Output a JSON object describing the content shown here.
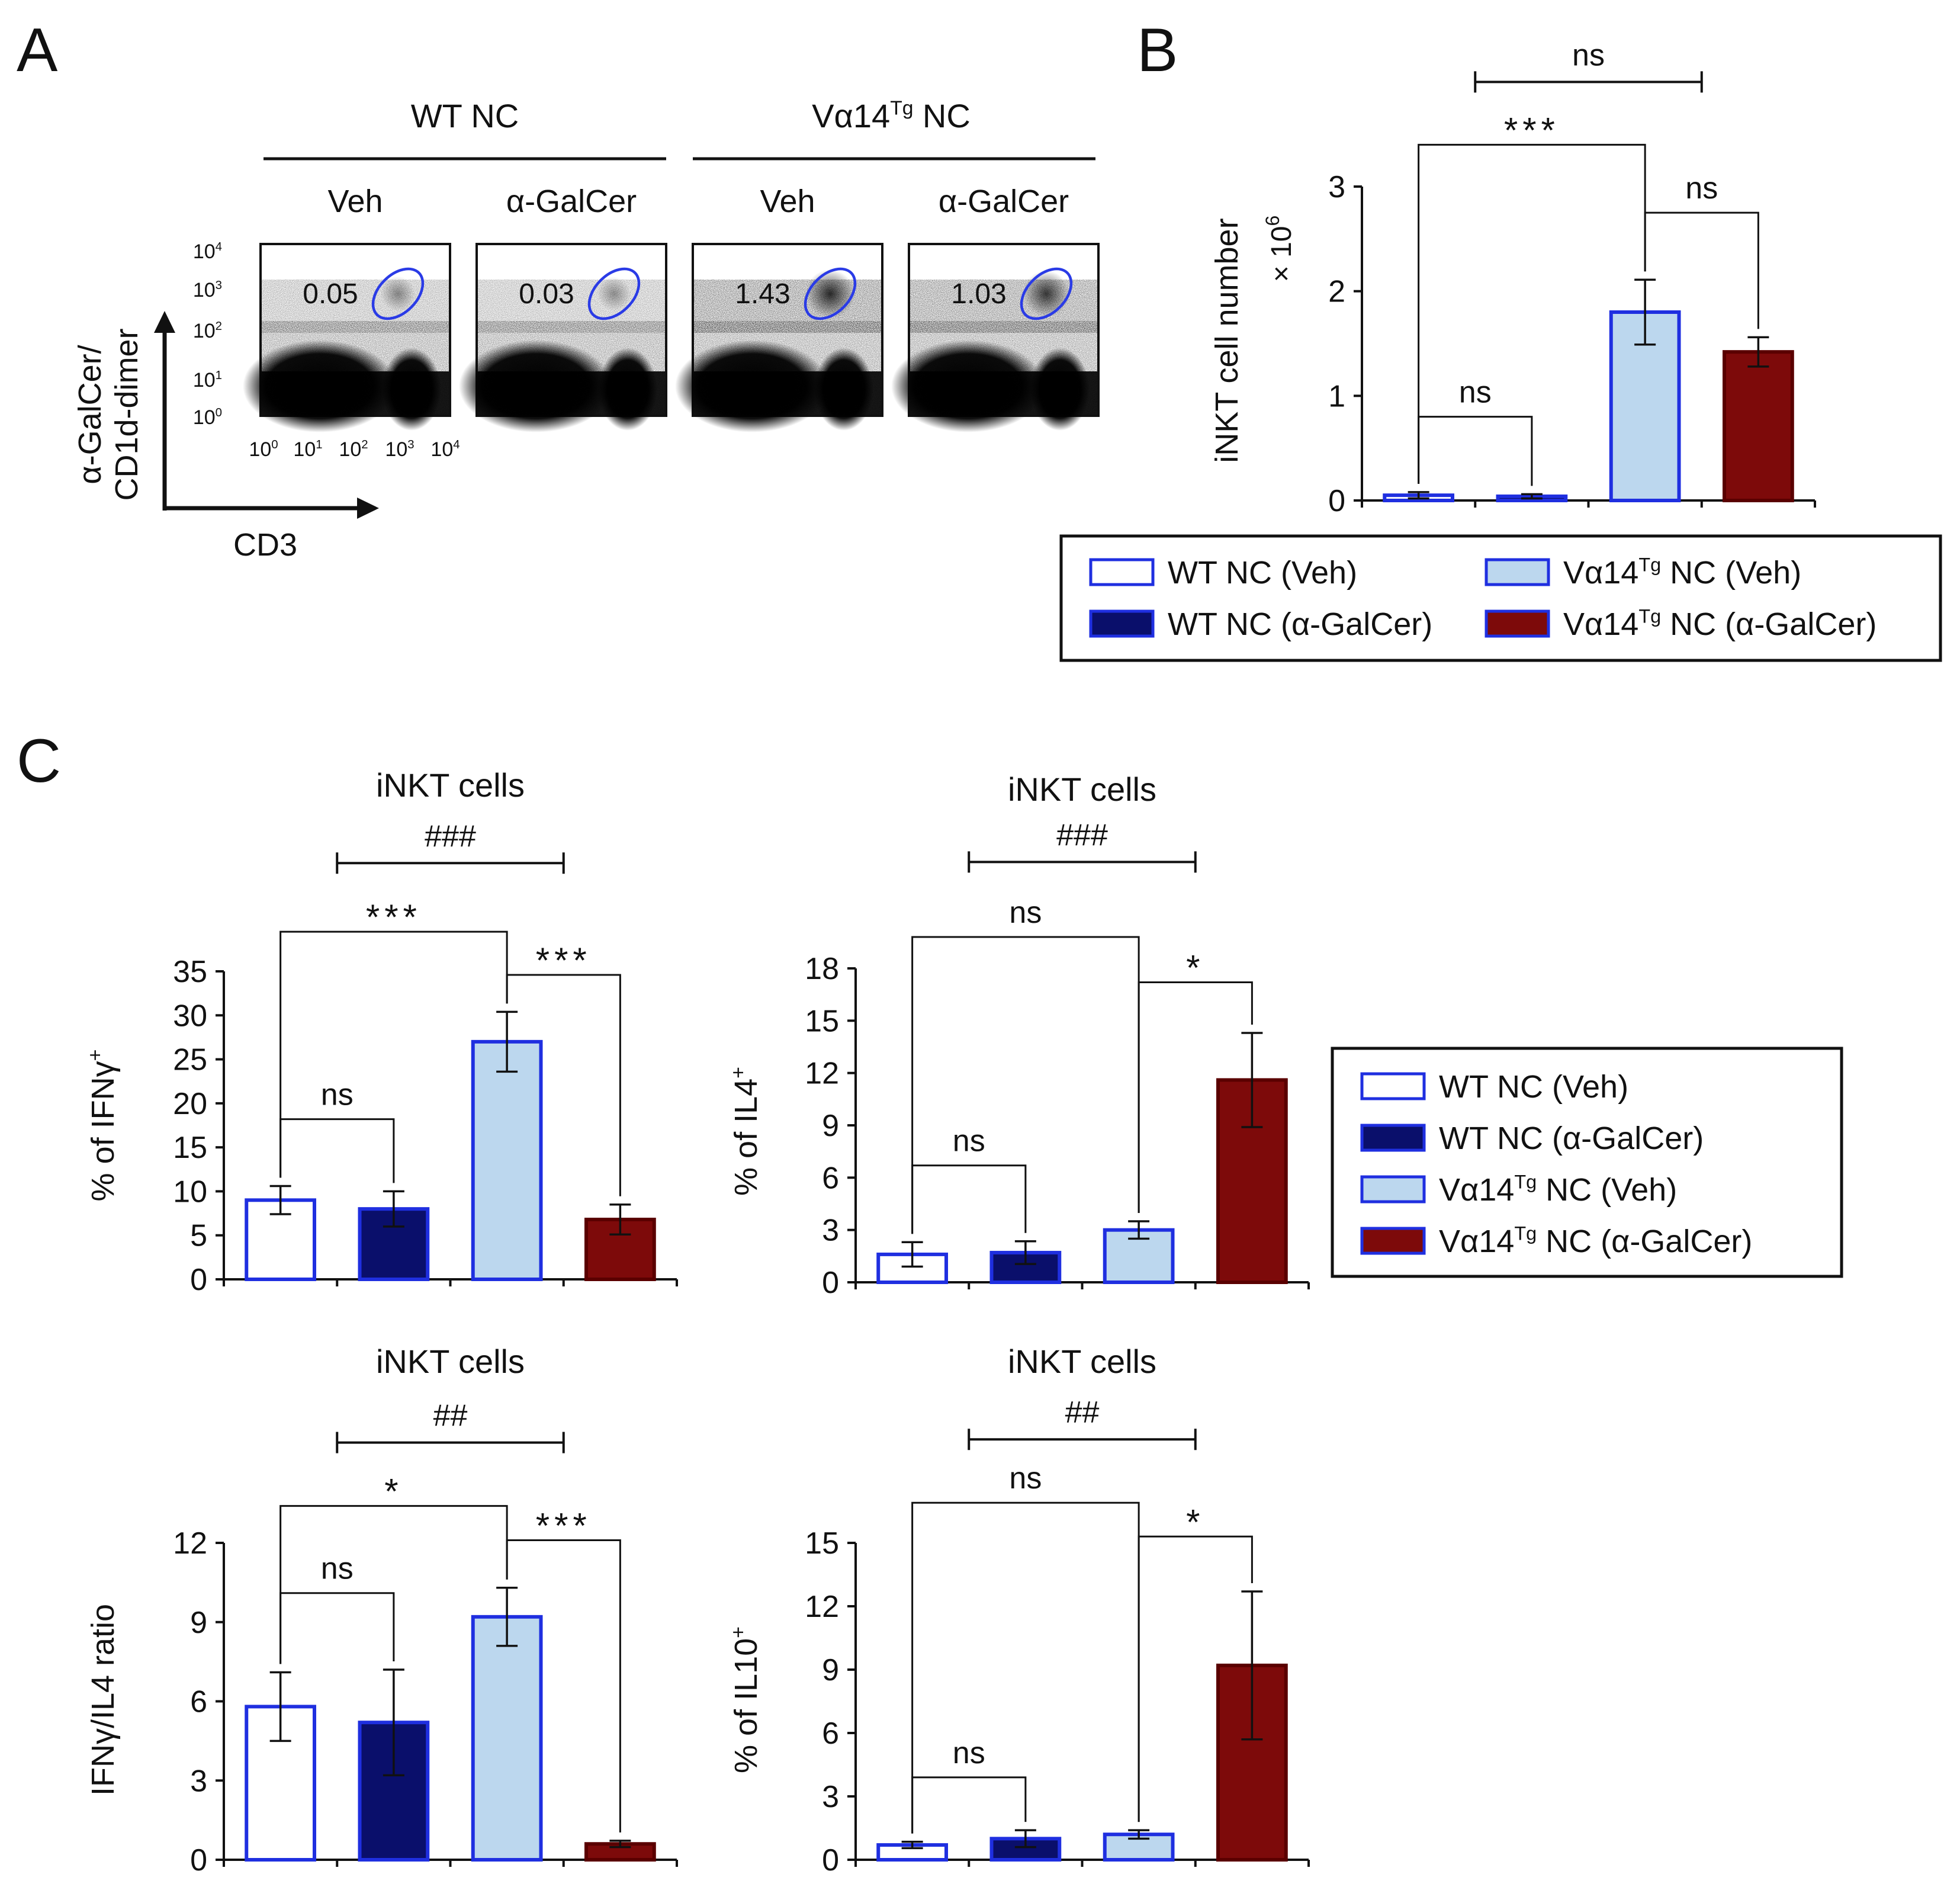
{
  "panel_labels": [
    "A",
    "B",
    "C"
  ],
  "colors": {
    "wt_veh": "#ffffff",
    "wt_agal": "#0a0f6b",
    "tg_veh": "#bcd7ee",
    "tg_agal": "#7d0a0a",
    "bar_edge_blue": "#1f2fe0",
    "bar_edge_red": "#5a0000",
    "gate": "#2a3be6"
  },
  "legend_items": [
    {
      "text": "WT NC (Veh)",
      "key": "wt_veh",
      "edge": "bar_edge_blue"
    },
    {
      "text": "WT NC (α-GalCer)",
      "key": "wt_agal",
      "edge": "bar_edge_blue"
    },
    {
      "text": "Vα14",
      "sup": "Tg",
      "after": " NC (Veh)",
      "key": "tg_veh",
      "edge": "bar_edge_blue"
    },
    {
      "text": "Vα14",
      "sup": "Tg",
      "after": " NC (α-GalCer)",
      "key": "tg_agal",
      "edge": "bar_edge_blue"
    }
  ],
  "panelA": {
    "groups": [
      {
        "label": "WT NC"
      },
      {
        "label": "Vα14",
        "sup": "Tg",
        "after": " NC"
      }
    ],
    "treatments": [
      "Veh",
      "α-GalCer",
      "Veh",
      "α-GalCer"
    ],
    "plots": [
      {
        "gate_value": "0.05",
        "density": 0.25
      },
      {
        "gate_value": "0.03",
        "density": 0.2
      },
      {
        "gate_value": "1.43",
        "density": 0.85
      },
      {
        "gate_value": "1.03",
        "density": 0.75
      }
    ],
    "axis_ticks": [
      "10",
      "10",
      "10",
      "10",
      "10"
    ],
    "axis_tick_exps": [
      "0",
      "1",
      "2",
      "3",
      "4"
    ],
    "y_axis_label_line1": "α-GalCer/",
    "y_axis_label_line2": "CD1d-dimer",
    "x_axis_label": "CD3"
  },
  "chart_data": [
    {
      "id": "B",
      "type": "bar",
      "title": "",
      "ylabel": "iNKT cell number",
      "ylabel_suffix": "× 10",
      "ylabel_suffix_exp": "6",
      "ylim": [
        0,
        3
      ],
      "yticks": [
        0,
        1,
        2,
        3
      ],
      "categories": [
        "WT NC (Veh)",
        "WT NC (α-GalCer)",
        "Vα14Tg NC (Veh)",
        "Vα14Tg NC (α-GalCer)"
      ],
      "values": [
        0.05,
        0.04,
        1.8,
        1.42
      ],
      "errors": [
        0.03,
        0.02,
        0.31,
        0.14
      ],
      "brackets": [
        {
          "from": 0,
          "to": 2,
          "label": "***",
          "y": 3.4,
          "kind": "bracket"
        },
        {
          "from": 2,
          "to": 3,
          "label": "ns",
          "y": 2.75,
          "kind": "bracket"
        },
        {
          "from": 0,
          "to": 1,
          "label": "ns",
          "y": 0.8,
          "kind": "bracket"
        },
        {
          "from": 0.5,
          "to": 2.5,
          "label": "ns",
          "y": 4.0,
          "kind": "span"
        }
      ]
    },
    {
      "id": "C1",
      "type": "bar",
      "title": "iNKT cells",
      "ylabel": "% of IFNγ",
      "ylabel_sup": "+",
      "ylim": [
        0,
        35
      ],
      "yticks": [
        0,
        5,
        10,
        15,
        20,
        25,
        30,
        35
      ],
      "categories": [
        "WT NC (Veh)",
        "WT NC (α-GalCer)",
        "Vα14Tg NC (Veh)",
        "Vα14Tg NC (α-GalCer)"
      ],
      "values": [
        9,
        8,
        27,
        6.8
      ],
      "errors": [
        1.6,
        2.0,
        3.4,
        1.7
      ],
      "brackets": [
        {
          "from": 0,
          "to": 2,
          "label": "***",
          "y": 39.5,
          "kind": "bracket"
        },
        {
          "from": 2,
          "to": 3,
          "label": "***",
          "y": 34.6,
          "kind": "bracket"
        },
        {
          "from": 0,
          "to": 1,
          "label": "ns",
          "y": 18.2,
          "kind": "bracket"
        },
        {
          "from": 0.5,
          "to": 2.5,
          "label": "###",
          "y": 47.3,
          "kind": "span"
        }
      ]
    },
    {
      "id": "C2",
      "type": "bar",
      "title": "iNKT cells",
      "ylabel": "% of IL4",
      "ylabel_sup": "+",
      "ylim": [
        0,
        18
      ],
      "yticks": [
        0,
        3,
        6,
        9,
        12,
        15,
        18
      ],
      "categories": [
        "WT NC (Veh)",
        "WT NC (α-GalCer)",
        "Vα14Tg NC (Veh)",
        "Vα14Tg NC (α-GalCer)"
      ],
      "values": [
        1.6,
        1.7,
        3.0,
        11.6
      ],
      "errors": [
        0.7,
        0.65,
        0.5,
        2.7
      ],
      "brackets": [
        {
          "from": 0,
          "to": 2,
          "label": "ns",
          "y": 19.8,
          "kind": "bracket"
        },
        {
          "from": 2,
          "to": 3,
          "label": "*",
          "y": 17.2,
          "kind": "bracket"
        },
        {
          "from": 0,
          "to": 1,
          "label": "ns",
          "y": 6.7,
          "kind": "bracket"
        },
        {
          "from": 0.5,
          "to": 2.5,
          "label": "###",
          "y": 24.1,
          "kind": "span"
        }
      ]
    },
    {
      "id": "C3",
      "type": "bar",
      "title": "iNKT cells",
      "ylabel": "IFNγ/IL4 ratio",
      "ylim": [
        0,
        12
      ],
      "yticks": [
        0,
        3,
        6,
        9,
        12
      ],
      "categories": [
        "WT NC (Veh)",
        "WT NC (α-GalCer)",
        "Vα14Tg NC (Veh)",
        "Vα14Tg NC (α-GalCer)"
      ],
      "values": [
        5.8,
        5.2,
        9.2,
        0.6
      ],
      "errors": [
        1.3,
        2.0,
        1.1,
        0.12
      ],
      "brackets": [
        {
          "from": 0,
          "to": 2,
          "label": "*",
          "y": 13.4,
          "kind": "bracket"
        },
        {
          "from": 2,
          "to": 3,
          "label": "***",
          "y": 12.1,
          "kind": "bracket"
        },
        {
          "from": 0,
          "to": 1,
          "label": "ns",
          "y": 10.1,
          "kind": "bracket"
        },
        {
          "from": 0.5,
          "to": 2.5,
          "label": "##",
          "y": 15.8,
          "kind": "span"
        }
      ]
    },
    {
      "id": "C4",
      "type": "bar",
      "title": "iNKT cells",
      "ylabel": "% of IL10",
      "ylabel_sup": "+",
      "ylim": [
        0,
        15
      ],
      "yticks": [
        0,
        3,
        6,
        9,
        12,
        15
      ],
      "categories": [
        "WT NC (Veh)",
        "WT NC (α-GalCer)",
        "Vα14Tg NC (Veh)",
        "Vα14Tg NC (α-GalCer)"
      ],
      "values": [
        0.7,
        1.0,
        1.2,
        9.2
      ],
      "errors": [
        0.15,
        0.4,
        0.2,
        3.5
      ],
      "brackets": [
        {
          "from": 0,
          "to": 2,
          "label": "ns",
          "y": 16.9,
          "kind": "bracket"
        },
        {
          "from": 2,
          "to": 3,
          "label": "*",
          "y": 15.3,
          "kind": "bracket"
        },
        {
          "from": 0,
          "to": 1,
          "label": "ns",
          "y": 3.9,
          "kind": "bracket"
        },
        {
          "from": 0.5,
          "to": 2.5,
          "label": "##",
          "y": 19.9,
          "kind": "span"
        }
      ]
    }
  ]
}
